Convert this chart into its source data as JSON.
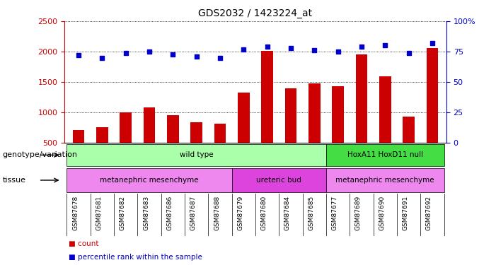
{
  "title": "GDS2032 / 1423224_at",
  "samples": [
    "GSM87678",
    "GSM87681",
    "GSM87682",
    "GSM87683",
    "GSM87686",
    "GSM87687",
    "GSM87688",
    "GSM87679",
    "GSM87680",
    "GSM87684",
    "GSM87685",
    "GSM87677",
    "GSM87689",
    "GSM87690",
    "GSM87691",
    "GSM87692"
  ],
  "bar_values": [
    720,
    760,
    1000,
    1080,
    960,
    840,
    820,
    1330,
    2010,
    1400,
    1480,
    1430,
    1950,
    1600,
    940,
    2060
  ],
  "dot_values": [
    72,
    70,
    74,
    75,
    73,
    71,
    70,
    77,
    79,
    78,
    76,
    75,
    79,
    80,
    74,
    82
  ],
  "bar_color": "#cc0000",
  "dot_color": "#0000cc",
  "ylim_left": [
    500,
    2500
  ],
  "ylim_right": [
    0,
    100
  ],
  "yticks_left": [
    500,
    1000,
    1500,
    2000,
    2500
  ],
  "yticks_right": [
    0,
    25,
    50,
    75,
    100
  ],
  "grid_values": [
    1000,
    1500,
    2000
  ],
  "genotype_groups": [
    {
      "label": "wild type",
      "start": 0,
      "end": 11,
      "color": "#aaffaa"
    },
    {
      "label": "HoxA11 HoxD11 null",
      "start": 11,
      "end": 16,
      "color": "#44dd44"
    }
  ],
  "tissue_groups": [
    {
      "label": "metanephric mesenchyme",
      "start": 0,
      "end": 7,
      "color": "#ee88ee"
    },
    {
      "label": "ureteric bud",
      "start": 7,
      "end": 11,
      "color": "#dd44dd"
    },
    {
      "label": "metanephric mesenchyme",
      "start": 11,
      "end": 16,
      "color": "#ee88ee"
    }
  ],
  "legend_count_color": "#cc0000",
  "legend_dot_color": "#0000cc",
  "label_genotype": "genotype/variation",
  "label_tissue": "tissue",
  "label_count": "count",
  "label_percentile": "percentile rank within the sample"
}
